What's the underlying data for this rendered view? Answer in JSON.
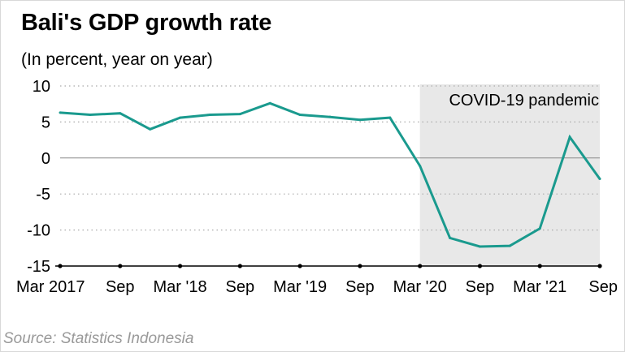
{
  "chart_data": {
    "type": "line",
    "title": "Bali's GDP growth rate",
    "subtitle": "(In percent, year on year)",
    "source": "Source: Statistics Indonesia",
    "shaded_region": {
      "label": "COVID-19 pandemic",
      "from_index": 12,
      "to_index": 18,
      "color": "#e8e8e8"
    },
    "line_color": "#1a9a8e",
    "ylim": [
      -15,
      10
    ],
    "yticks": [
      10,
      5,
      0,
      -5,
      -10,
      -15
    ],
    "x_tick_labels": [
      {
        "index": 0,
        "label": "Mar 2017"
      },
      {
        "index": 2,
        "label": "Sep"
      },
      {
        "index": 4,
        "label": "Mar '18"
      },
      {
        "index": 6,
        "label": "Sep"
      },
      {
        "index": 8,
        "label": "Mar '19"
      },
      {
        "index": 10,
        "label": "Sep"
      },
      {
        "index": 12,
        "label": "Mar '20"
      },
      {
        "index": 14,
        "label": "Sep"
      },
      {
        "index": 16,
        "label": "Mar '21"
      },
      {
        "index": 18,
        "label": "Sep"
      }
    ],
    "series": [
      {
        "name": "GDP growth",
        "values": [
          6.3,
          6.0,
          6.2,
          4.0,
          5.6,
          6.0,
          6.1,
          7.6,
          6.0,
          5.7,
          5.3,
          5.6,
          -1.1,
          -11.1,
          -12.3,
          -12.2,
          -9.8,
          2.9,
          -2.9
        ]
      }
    ]
  }
}
